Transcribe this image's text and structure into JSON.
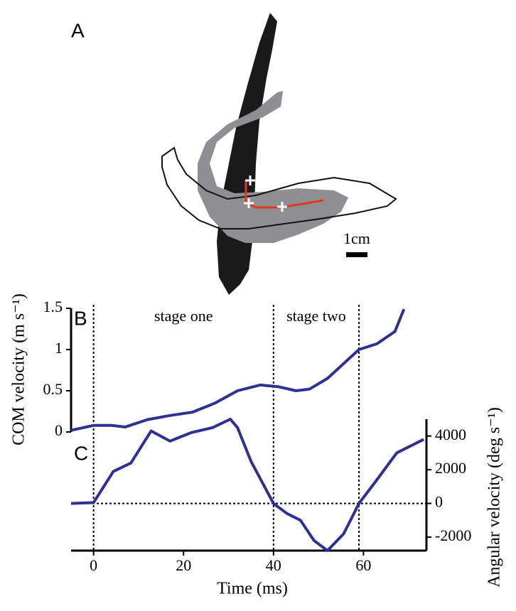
{
  "panel_label": "A",
  "scale_bar": "1cm",
  "chart_data": [
    {
      "type": "line",
      "panel": "B",
      "ylabel": "COM velocity (m s⁻¹)",
      "annotations": [
        "stage one",
        "stage two"
      ],
      "boundaries": [
        0,
        40,
        59
      ],
      "color": "#2e3192",
      "xlim": [
        -5,
        74
      ],
      "ylim": [
        0,
        1.5
      ],
      "yticks": [
        0,
        0.5,
        1,
        1.5
      ],
      "x": [
        -5,
        0,
        4,
        7,
        12,
        17,
        22,
        27,
        32,
        37,
        41,
        45,
        48,
        52,
        56,
        59,
        63,
        67,
        69
      ],
      "values": [
        0.02,
        0.08,
        0.08,
        0.06,
        0.15,
        0.2,
        0.24,
        0.35,
        0.5,
        0.57,
        0.55,
        0.5,
        0.52,
        0.65,
        0.85,
        1.0,
        1.07,
        1.22,
        1.49
      ]
    },
    {
      "type": "line",
      "panel": "C",
      "xlabel": "Time (ms)",
      "ylabel": "Angular velocity (deg s⁻¹)",
      "reference_line": 0,
      "color": "#2e3192",
      "xlim": [
        -5,
        74
      ],
      "xticks": [
        0,
        20,
        40,
        60
      ],
      "ylim": [
        -2800,
        5000
      ],
      "yticks": [
        -2000,
        0,
        2000,
        4000
      ],
      "x": [
        -5,
        0,
        4.4,
        8.3,
        12.8,
        17,
        21.7,
        26.5,
        30.4,
        32,
        35,
        40,
        43,
        46,
        49,
        52,
        55.6,
        59,
        62.7,
        67.4,
        73.4
      ],
      "values": [
        0,
        50,
        1900,
        2400,
        4300,
        3700,
        4200,
        4500,
        5000,
        4500,
        2500,
        0,
        -600,
        -1000,
        -2200,
        -2800,
        -1800,
        0,
        1300,
        3000,
        3800
      ]
    }
  ]
}
